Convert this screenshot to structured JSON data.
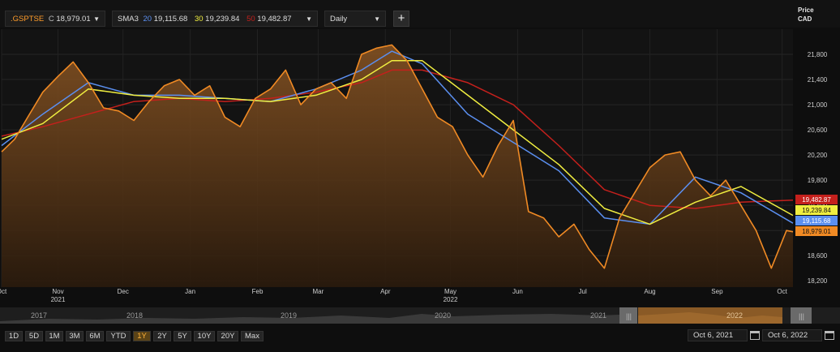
{
  "toolbar": {
    "symbol": ".GSPTSE",
    "close_label": "C",
    "close_value": "18,979.01",
    "indicator_name": "SMA3",
    "sma_periods": [
      "20",
      "30",
      "50"
    ],
    "sma_values": [
      "19,115.68",
      "19,239.84",
      "19,482.87"
    ],
    "interval": "Daily",
    "add_label": "+"
  },
  "y_header": {
    "line1": "Price",
    "line2": "CAD"
  },
  "colors": {
    "price": "#f08a24",
    "sma20": "#5b8ff0",
    "sma30": "#f0ee40",
    "sma50": "#c4201c",
    "accent": "#ff9c2a"
  },
  "chart_data": {
    "type": "line",
    "y_ticks": [
      18200,
      18600,
      19000,
      19400,
      19800,
      20200,
      20600,
      21000,
      21400,
      21800
    ],
    "y_tick_labels": [
      "18,200",
      "18,600",
      "19,000",
      "19,400",
      "19,800",
      "20,200",
      "20,600",
      "21,000",
      "21,400",
      "21,800"
    ],
    "ylim": [
      18100,
      22200
    ],
    "x_range": [
      "2021-10-06",
      "2022-10-06"
    ],
    "x_ticks": [
      {
        "date": "2021-10-06",
        "label": "Oct"
      },
      {
        "date": "2021-11-01",
        "label": "Nov"
      },
      {
        "date": "2021-12-01",
        "label": "Dec"
      },
      {
        "date": "2022-01-01",
        "label": "Jan"
      },
      {
        "date": "2022-02-01",
        "label": "Feb"
      },
      {
        "date": "2022-03-01",
        "label": "Mar"
      },
      {
        "date": "2022-04-01",
        "label": "Apr"
      },
      {
        "date": "2022-05-01",
        "label": "May"
      },
      {
        "date": "2022-06-01",
        "label": "Jun"
      },
      {
        "date": "2022-07-01",
        "label": "Jul"
      },
      {
        "date": "2022-08-01",
        "label": "Aug"
      },
      {
        "date": "2022-09-01",
        "label": "Sep"
      },
      {
        "date": "2022-10-01",
        "label": "Oct"
      }
    ],
    "year_labels": [
      {
        "date": "2021-11-01",
        "label": "2021"
      },
      {
        "date": "2022-05-01",
        "label": "2022"
      }
    ],
    "series": [
      {
        "name": ".GSPTSE",
        "x": [
          "2021-10-06",
          "2021-10-12",
          "2021-10-18",
          "2021-10-25",
          "2021-11-01",
          "2021-11-08",
          "2021-11-15",
          "2021-11-22",
          "2021-11-29",
          "2021-12-06",
          "2021-12-13",
          "2021-12-20",
          "2021-12-27",
          "2022-01-03",
          "2022-01-10",
          "2022-01-17",
          "2022-01-24",
          "2022-01-31",
          "2022-02-07",
          "2022-02-14",
          "2022-02-21",
          "2022-02-28",
          "2022-03-07",
          "2022-03-14",
          "2022-03-21",
          "2022-03-28",
          "2022-04-04",
          "2022-04-11",
          "2022-04-18",
          "2022-04-25",
          "2022-05-02",
          "2022-05-09",
          "2022-05-16",
          "2022-05-23",
          "2022-05-30",
          "2022-06-06",
          "2022-06-13",
          "2022-06-20",
          "2022-06-27",
          "2022-07-04",
          "2022-07-11",
          "2022-07-18",
          "2022-07-25",
          "2022-08-01",
          "2022-08-08",
          "2022-08-15",
          "2022-08-22",
          "2022-08-29",
          "2022-09-05",
          "2022-09-12",
          "2022-09-19",
          "2022-09-26",
          "2022-10-03",
          "2022-10-06"
        ],
        "y": [
          20250,
          20450,
          20800,
          21200,
          21450,
          21680,
          21350,
          20950,
          20900,
          20750,
          21050,
          21300,
          21400,
          21150,
          21300,
          20800,
          20650,
          21100,
          21250,
          21550,
          21000,
          21250,
          21350,
          21100,
          21800,
          21900,
          21950,
          21700,
          21250,
          20800,
          20650,
          20200,
          19850,
          20350,
          20750,
          19300,
          19200,
          18900,
          19100,
          18700,
          18400,
          19200,
          19600,
          20000,
          20200,
          20250,
          19800,
          19550,
          19800,
          19400,
          19000,
          18400,
          19000,
          18979
        ]
      },
      {
        "name": "SMA 20",
        "x": [
          "2021-10-06",
          "2021-10-25",
          "2021-11-15",
          "2021-12-06",
          "2021-12-27",
          "2022-01-17",
          "2022-02-07",
          "2022-02-28",
          "2022-03-21",
          "2022-04-04",
          "2022-04-18",
          "2022-05-09",
          "2022-05-30",
          "2022-06-20",
          "2022-07-11",
          "2022-08-01",
          "2022-08-22",
          "2022-09-12",
          "2022-10-06"
        ],
        "y": [
          20350,
          20850,
          21350,
          21150,
          21150,
          21100,
          21050,
          21250,
          21550,
          21850,
          21650,
          20850,
          20400,
          19950,
          19200,
          19100,
          19850,
          19600,
          19116
        ]
      },
      {
        "name": "SMA 30",
        "x": [
          "2021-10-06",
          "2021-10-25",
          "2021-11-15",
          "2021-12-06",
          "2021-12-27",
          "2022-01-17",
          "2022-02-07",
          "2022-02-28",
          "2022-03-21",
          "2022-04-04",
          "2022-04-18",
          "2022-05-09",
          "2022-05-30",
          "2022-06-20",
          "2022-07-11",
          "2022-08-01",
          "2022-08-22",
          "2022-09-12",
          "2022-10-06"
        ],
        "y": [
          20450,
          20700,
          21250,
          21150,
          21100,
          21100,
          21050,
          21150,
          21400,
          21700,
          21700,
          21150,
          20600,
          20050,
          19350,
          19100,
          19450,
          19700,
          19240
        ]
      },
      {
        "name": "SMA 50",
        "x": [
          "2021-10-06",
          "2021-10-25",
          "2021-11-15",
          "2021-12-06",
          "2021-12-27",
          "2022-01-17",
          "2022-02-07",
          "2022-02-28",
          "2022-03-21",
          "2022-04-04",
          "2022-04-18",
          "2022-05-09",
          "2022-05-30",
          "2022-06-20",
          "2022-07-11",
          "2022-08-01",
          "2022-08-22",
          "2022-09-12",
          "2022-10-06"
        ],
        "y": [
          20500,
          20650,
          20850,
          21050,
          21100,
          21050,
          21100,
          21200,
          21350,
          21550,
          21550,
          21350,
          21000,
          20350,
          19650,
          19400,
          19350,
          19450,
          19483
        ]
      }
    ],
    "last_value_tags": [
      {
        "series": "SMA 50",
        "value": 19482.87,
        "label": "19,482.87",
        "color": "#c4201c"
      },
      {
        "series": "SMA 30",
        "value": 19239.84,
        "label": "19,239.84",
        "color": "#f0ee40"
      },
      {
        "series": "SMA 20",
        "value": 19115.68,
        "label": "19,115.68",
        "color": "#5b8ff0"
      },
      {
        "series": ".GSPTSE",
        "value": 18979.01,
        "label": "18,979.01",
        "color": "#f08a24"
      }
    ],
    "grid": true
  },
  "navigator": {
    "years": [
      "2017",
      "2018",
      "2019",
      "2020",
      "2021",
      "2022"
    ],
    "selection": [
      "2021-10-06",
      "2022-10-06"
    ]
  },
  "range_buttons": [
    "1D",
    "5D",
    "1M",
    "3M",
    "6M",
    "YTD",
    "1Y",
    "2Y",
    "5Y",
    "10Y",
    "20Y",
    "Max"
  ],
  "active_range": "1Y",
  "date_range": {
    "from": "Oct 6, 2021",
    "to": "Oct 6, 2022"
  }
}
